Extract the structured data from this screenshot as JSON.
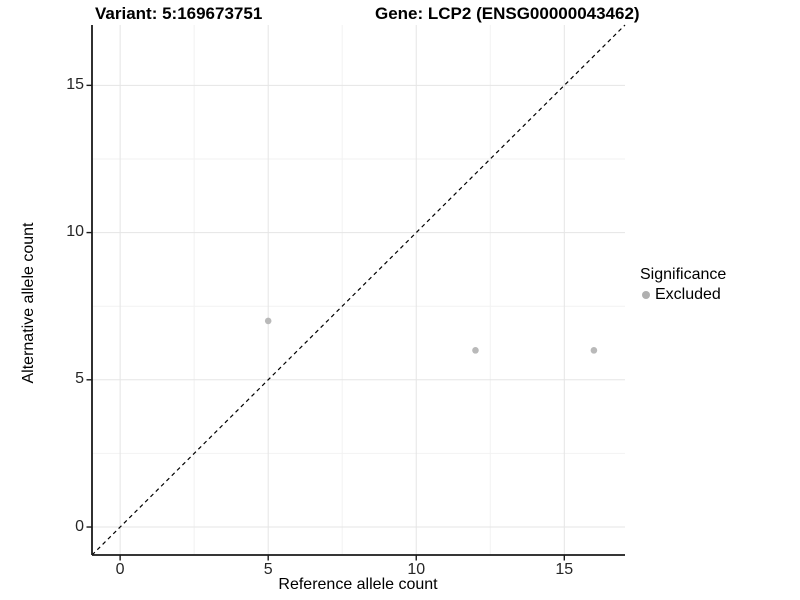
{
  "chart_data": {
    "type": "scatter",
    "title_left": "Variant: 5:169673751",
    "title_right": "Gene: LCP2 (ENSG00000043462)",
    "xlabel": "Reference allele count",
    "ylabel": "Alternative allele count",
    "xlim": [
      -0.95,
      17.05
    ],
    "ylim": [
      -0.95,
      17.05
    ],
    "x_ticks": [
      0,
      5,
      10,
      15
    ],
    "y_ticks": [
      0,
      5,
      10,
      15
    ],
    "x_minor_gridlines": [
      2.5,
      7.5,
      12.5
    ],
    "y_minor_gridlines": [
      2.5,
      7.5,
      12.5
    ],
    "grid": true,
    "series": [
      {
        "name": "Excluded",
        "color": "#b9b9b9",
        "points": [
          {
            "x": 5,
            "y": 7
          },
          {
            "x": 12,
            "y": 6
          },
          {
            "x": 16,
            "y": 6
          }
        ]
      }
    ],
    "reference_line": {
      "type": "identity",
      "style": "dashed",
      "color": "#000000"
    },
    "legend": {
      "title": "Significance",
      "position": "right",
      "items": [
        {
          "label": "Excluded",
          "color": "#b0b0b0"
        }
      ]
    },
    "colors": {
      "grid_major": "#e5e5e5",
      "grid_minor": "#f2f2f2",
      "axis_line": "#1a1a1a",
      "tick_label": "#262626",
      "point": "#b9b9b9"
    }
  }
}
